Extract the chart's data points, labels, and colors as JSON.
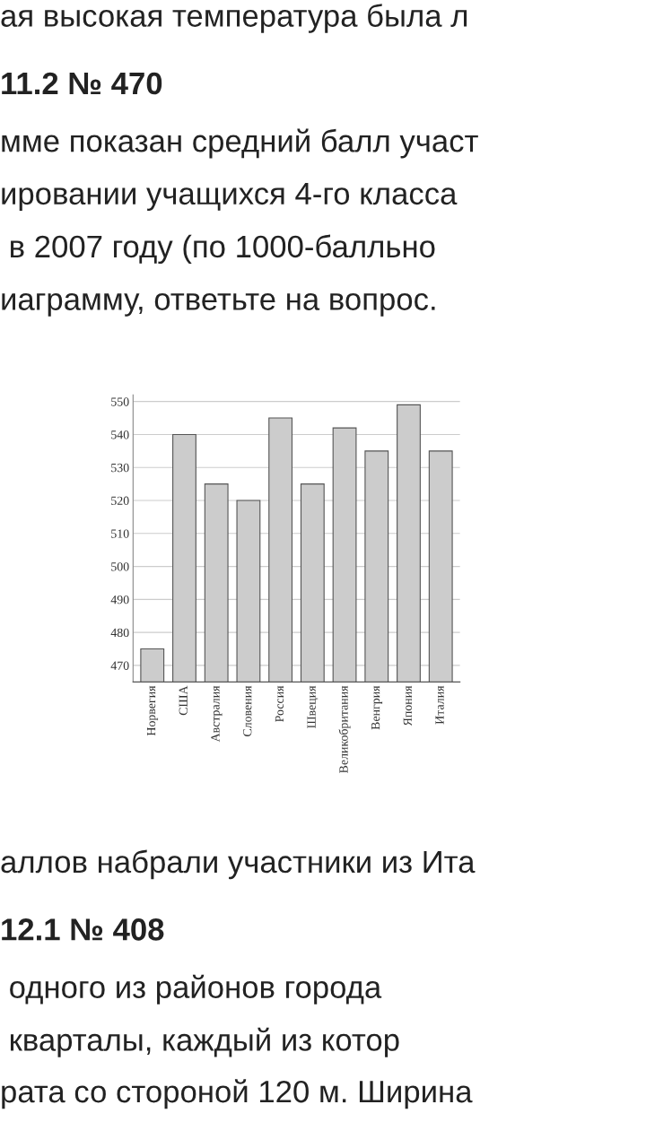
{
  "chart_data": {
    "type": "bar",
    "categories": [
      "Норвегия",
      "США",
      "Австралия",
      "Словения",
      "Россия",
      "Швеция",
      "Великобритания",
      "Венгрия",
      "Япония",
      "Италия"
    ],
    "values": [
      475,
      540,
      525,
      520,
      545,
      525,
      542,
      535,
      549,
      535
    ],
    "color": "#cccccc",
    "ylim": [
      465,
      552
    ],
    "yticks": [
      470,
      480,
      490,
      500,
      510,
      520,
      530,
      540,
      550
    ],
    "grid": "y",
    "annotations": [
      "ая высокая температура была л",
      "11.2 № 470",
      "мме показан средний балл участ",
      "ировании учащихся 4-го класса",
      " в 2007 году (по 1000-балльно",
      "иаграмму, ответьте на вопрос.",
      "аллов набрали участники из Ита",
      "12.1 № 408",
      " одного из районов города",
      " кварталы, каждый из котор",
      "рата со стороной 120 м. Ширина"
    ]
  }
}
